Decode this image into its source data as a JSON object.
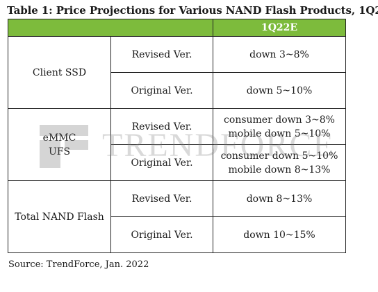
{
  "title": "Table 1: Price Projections for Various NAND Flash Products, 1Q22",
  "header": {
    "blank": "",
    "column_label": "1Q22E"
  },
  "rows": [
    {
      "category": "Client SSD",
      "versions": [
        {
          "version": "Revised Ver.",
          "lines": [
            "down 3~8%"
          ]
        },
        {
          "version": "Original Ver.",
          "lines": [
            "down 5~10%"
          ]
        }
      ]
    },
    {
      "category_lines": [
        "eMMC",
        "UFS"
      ],
      "versions": [
        {
          "version": "Revised Ver.",
          "lines": [
            "consumer down 3~8%",
            "mobile down 5~10%"
          ]
        },
        {
          "version": "Original Ver.",
          "lines": [
            "consumer down 5~10%",
            "mobile down 8~13%"
          ]
        }
      ]
    },
    {
      "category": "Total NAND Flash",
      "versions": [
        {
          "version": "Revised Ver.",
          "lines": [
            "down 8~13%"
          ]
        },
        {
          "version": "Original Ver.",
          "lines": [
            "down 10~15%"
          ]
        }
      ]
    }
  ],
  "watermark": {
    "text": "TRENDFORCE"
  },
  "source": "Source: TrendForce, Jan. 2022",
  "colors": {
    "header_green": "#7dbb3c",
    "header_text": "#ffffff",
    "border": "#222222"
  }
}
